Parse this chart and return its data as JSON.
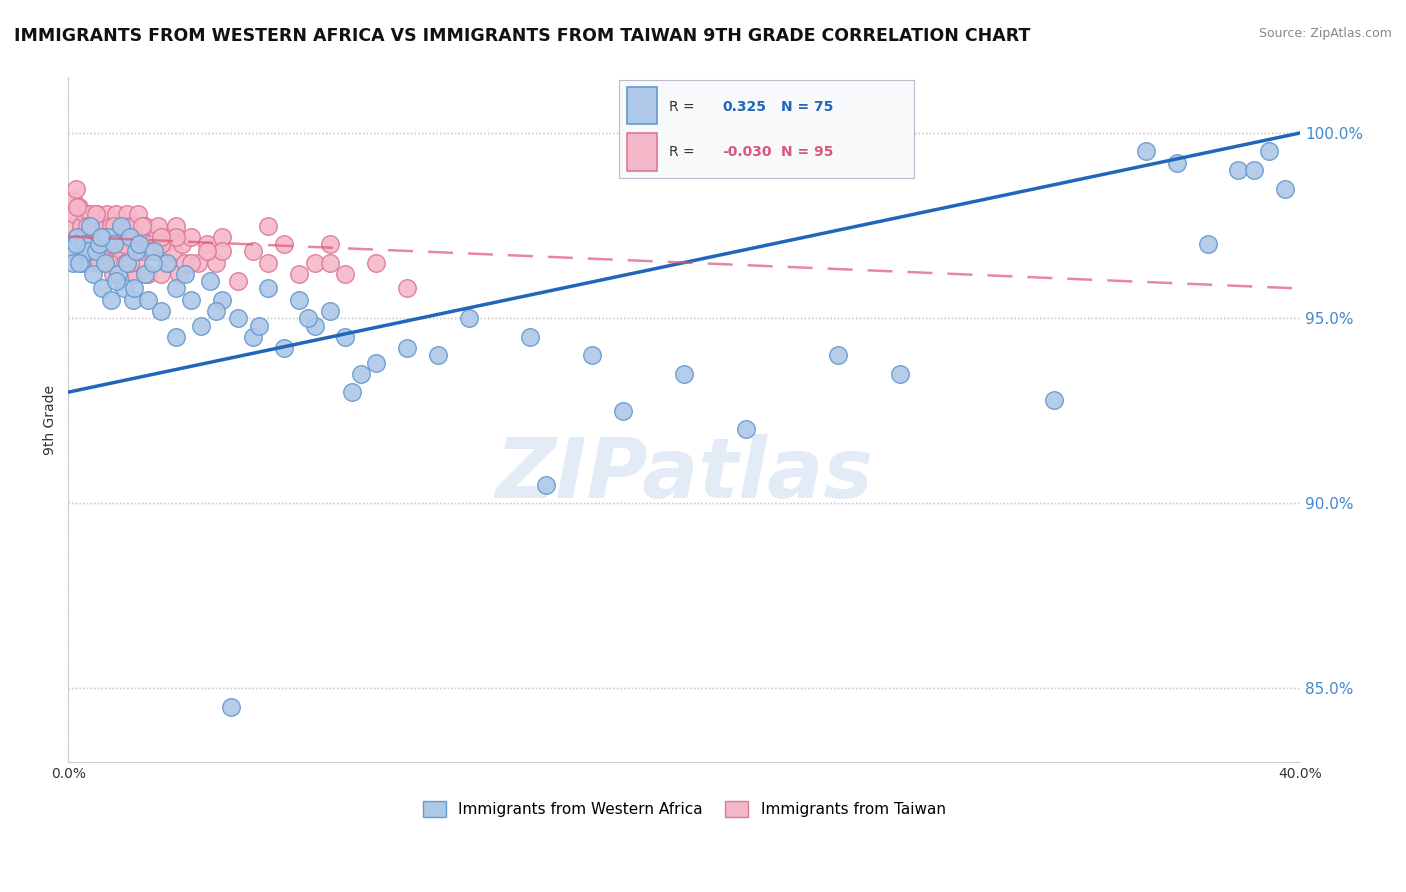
{
  "title": "IMMIGRANTS FROM WESTERN AFRICA VS IMMIGRANTS FROM TAIWAN 9TH GRADE CORRELATION CHART",
  "source": "Source: ZipAtlas.com",
  "ylabel": "9th Grade",
  "xmin": 0.0,
  "xmax": 40.0,
  "ymin": 83.0,
  "ymax": 101.5,
  "yticks": [
    85.0,
    90.0,
    95.0,
    100.0
  ],
  "ytick_labels": [
    "85.0%",
    "90.0%",
    "95.0%",
    "100.0%"
  ],
  "blue_R": 0.325,
  "blue_N": 75,
  "pink_R": -0.03,
  "pink_N": 95,
  "blue_color": "#adc8e8",
  "blue_edge": "#6699cc",
  "pink_color": "#f4b8c8",
  "pink_edge": "#dd7799",
  "blue_line_color": "#2266bb",
  "pink_line_color": "#dd5577",
  "watermark_color": "#d0dff0",
  "background_color": "#ffffff",
  "blue_line_x0": 0.0,
  "blue_line_x1": 40.0,
  "blue_line_y0": 93.0,
  "blue_line_y1": 100.0,
  "pink_line_x0": 0.0,
  "pink_line_x1": 40.0,
  "pink_line_y0": 97.2,
  "pink_line_y1": 95.8,
  "blue_scatter_x": [
    0.2,
    0.3,
    0.4,
    0.5,
    0.6,
    0.7,
    0.8,
    0.9,
    1.0,
    1.1,
    1.2,
    1.3,
    1.4,
    1.5,
    1.6,
    1.7,
    1.8,
    1.9,
    2.0,
    2.1,
    2.2,
    2.3,
    2.5,
    2.6,
    2.8,
    3.0,
    3.2,
    3.5,
    3.8,
    4.0,
    4.3,
    4.6,
    5.0,
    5.5,
    6.0,
    6.5,
    7.0,
    7.5,
    8.0,
    8.5,
    9.0,
    10.0,
    11.0,
    13.0,
    15.0,
    17.0,
    20.0,
    25.0,
    35.0,
    36.0,
    38.0,
    39.0,
    39.5,
    0.15,
    0.25,
    0.35,
    1.05,
    1.55,
    2.15,
    2.75,
    3.5,
    4.8,
    6.2,
    7.8,
    9.5,
    12.0,
    18.0,
    22.0,
    27.0,
    32.0,
    37.0,
    38.5,
    5.3,
    9.2,
    15.5
  ],
  "blue_scatter_y": [
    96.8,
    97.2,
    96.5,
    97.0,
    96.8,
    97.5,
    96.2,
    96.8,
    97.0,
    95.8,
    96.5,
    97.2,
    95.5,
    97.0,
    96.2,
    97.5,
    95.8,
    96.5,
    97.2,
    95.5,
    96.8,
    97.0,
    96.2,
    95.5,
    96.8,
    95.2,
    96.5,
    95.8,
    96.2,
    95.5,
    94.8,
    96.0,
    95.5,
    95.0,
    94.5,
    95.8,
    94.2,
    95.5,
    94.8,
    95.2,
    94.5,
    93.8,
    94.2,
    95.0,
    94.5,
    94.0,
    93.5,
    94.0,
    99.5,
    99.2,
    99.0,
    99.5,
    98.5,
    96.5,
    97.0,
    96.5,
    97.2,
    96.0,
    95.8,
    96.5,
    94.5,
    95.2,
    94.8,
    95.0,
    93.5,
    94.0,
    92.5,
    92.0,
    93.5,
    92.8,
    97.0,
    99.0,
    84.5,
    93.0,
    90.5
  ],
  "pink_scatter_x": [
    0.1,
    0.15,
    0.2,
    0.25,
    0.3,
    0.35,
    0.4,
    0.45,
    0.5,
    0.55,
    0.6,
    0.65,
    0.7,
    0.75,
    0.8,
    0.85,
    0.9,
    0.95,
    1.0,
    1.05,
    1.1,
    1.15,
    1.2,
    1.25,
    1.3,
    1.35,
    1.4,
    1.45,
    1.5,
    1.55,
    1.6,
    1.65,
    1.7,
    1.75,
    1.8,
    1.85,
    1.9,
    1.95,
    2.0,
    2.05,
    2.1,
    2.15,
    2.2,
    2.25,
    2.3,
    2.35,
    2.4,
    2.5,
    2.6,
    2.7,
    2.8,
    2.9,
    3.0,
    3.1,
    3.2,
    3.3,
    3.4,
    3.5,
    3.6,
    3.7,
    3.8,
    4.0,
    4.2,
    4.5,
    4.8,
    5.0,
    5.5,
    6.0,
    6.5,
    7.0,
    7.5,
    8.0,
    8.5,
    9.0,
    10.0,
    11.0,
    0.3,
    0.6,
    0.9,
    1.2,
    1.5,
    1.8,
    2.1,
    2.4,
    2.7,
    3.0,
    3.5,
    4.0,
    5.0,
    6.5,
    8.5,
    1.0,
    2.0,
    3.0,
    4.5
  ],
  "pink_scatter_y": [
    97.5,
    98.2,
    97.8,
    98.5,
    97.2,
    98.0,
    97.5,
    96.8,
    97.2,
    97.8,
    96.5,
    97.5,
    97.8,
    97.2,
    96.8,
    97.5,
    97.0,
    97.8,
    96.5,
    97.2,
    97.5,
    96.8,
    97.2,
    97.8,
    96.5,
    97.0,
    97.5,
    96.2,
    97.2,
    97.8,
    96.5,
    97.0,
    97.5,
    96.8,
    97.2,
    96.5,
    97.8,
    96.2,
    97.5,
    96.8,
    97.2,
    97.5,
    96.2,
    97.8,
    96.5,
    97.2,
    96.8,
    97.5,
    96.2,
    97.0,
    96.8,
    97.5,
    96.2,
    97.0,
    96.5,
    97.2,
    96.8,
    97.5,
    96.2,
    97.0,
    96.5,
    97.2,
    96.5,
    97.0,
    96.5,
    97.2,
    96.0,
    96.8,
    96.5,
    97.0,
    96.2,
    96.5,
    97.0,
    96.2,
    96.5,
    95.8,
    98.0,
    97.5,
    97.8,
    97.2,
    97.5,
    97.0,
    97.2,
    97.5,
    96.8,
    97.0,
    97.2,
    96.5,
    96.8,
    97.5,
    96.5,
    97.0,
    96.5,
    97.2,
    96.8
  ]
}
